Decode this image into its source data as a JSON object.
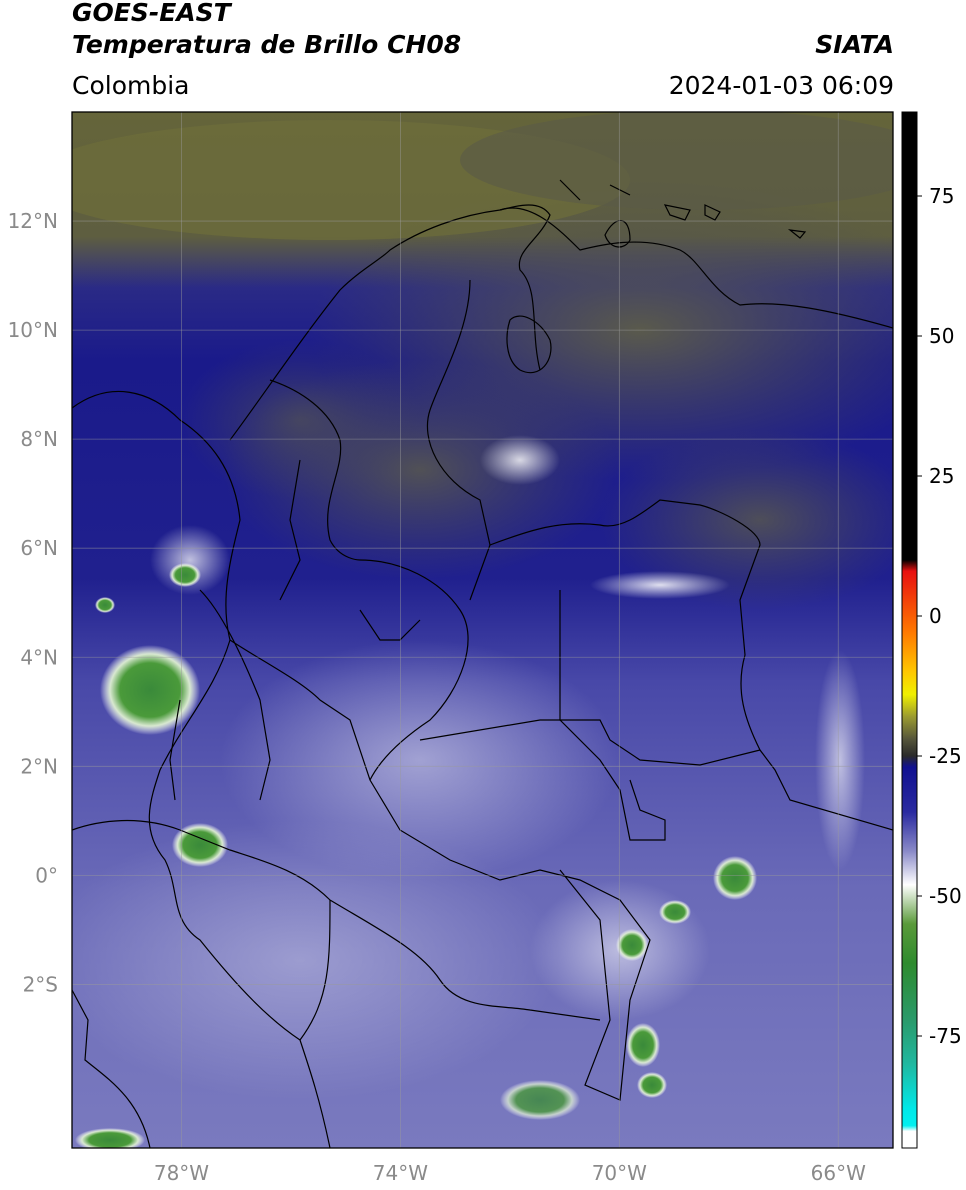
{
  "header": {
    "satellite": "GOES-EAST",
    "product": "Temperatura de Brillo CH08",
    "brand": "SIATA",
    "region": "Colombia",
    "datetime": "2024-01-03 06:09"
  },
  "map": {
    "lon_range": [
      -80,
      -65
    ],
    "lat_range": [
      -5,
      14
    ],
    "lon_ticks": [
      {
        "value": -78,
        "label": "78°W"
      },
      {
        "value": -74,
        "label": "74°W"
      },
      {
        "value": -70,
        "label": "70°W"
      },
      {
        "value": -66,
        "label": "66°W"
      }
    ],
    "lat_ticks": [
      {
        "value": 12,
        "label": "12°N"
      },
      {
        "value": 10,
        "label": "10°N"
      },
      {
        "value": 8,
        "label": "8°N"
      },
      {
        "value": 6,
        "label": "6°N"
      },
      {
        "value": 4,
        "label": "4°N"
      },
      {
        "value": 2,
        "label": "2°N"
      },
      {
        "value": 0,
        "label": "0°"
      },
      {
        "value": -2,
        "label": "2°S"
      }
    ],
    "grid": true
  },
  "colorbar": {
    "range": [
      -95,
      90
    ],
    "ticks": [
      {
        "value": 75,
        "label": "75"
      },
      {
        "value": 50,
        "label": "50"
      },
      {
        "value": 25,
        "label": "25"
      },
      {
        "value": 0,
        "label": "0"
      },
      {
        "value": -25,
        "label": "-25"
      },
      {
        "value": -50,
        "label": "-50"
      },
      {
        "value": -75,
        "label": "-75"
      }
    ],
    "stops": [
      {
        "value": 90,
        "color": "#000000"
      },
      {
        "value": 10,
        "color": "#000000"
      },
      {
        "value": 8,
        "color": "#e81010"
      },
      {
        "value": -3,
        "color": "#ff7a00"
      },
      {
        "value": -10,
        "color": "#ffc800"
      },
      {
        "value": -14,
        "color": "#f0f000"
      },
      {
        "value": -18,
        "color": "#9a9a30"
      },
      {
        "value": -22,
        "color": "#55553a"
      },
      {
        "value": -25,
        "color": "#2a2a2a"
      },
      {
        "value": -27,
        "color": "#101090"
      },
      {
        "value": -35,
        "color": "#2a2aa0"
      },
      {
        "value": -42,
        "color": "#8a8ac8"
      },
      {
        "value": -48,
        "color": "#ffffff"
      },
      {
        "value": -55,
        "color": "#5a9a3a"
      },
      {
        "value": -62,
        "color": "#2e8b2e"
      },
      {
        "value": -72,
        "color": "#2a9a6a"
      },
      {
        "value": -80,
        "color": "#20b8a0"
      },
      {
        "value": -88,
        "color": "#00e8e8"
      },
      {
        "value": -91,
        "color": "#00f0f0"
      },
      {
        "value": -92,
        "color": "#ffffff"
      },
      {
        "value": -95,
        "color": "#ffffff"
      }
    ]
  },
  "colors": {
    "warm_cloudless": "#6f6f3a",
    "cold_cloud": "#1a1a8a",
    "frame": "#000000"
  }
}
